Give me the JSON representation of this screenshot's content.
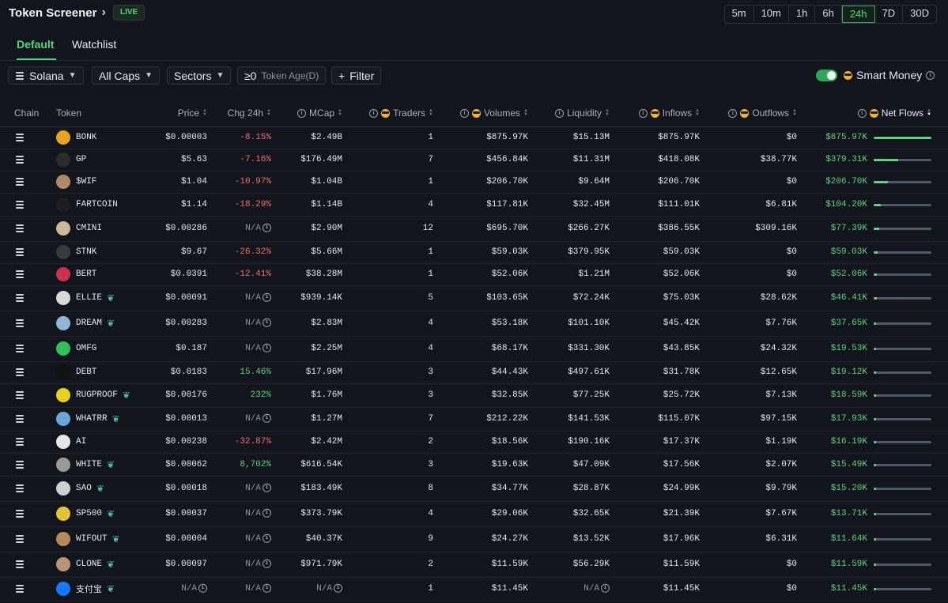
{
  "header": {
    "title": "Token Screener",
    "live_badge": "LIVE",
    "timeframes": [
      "5m",
      "10m",
      "1h",
      "6h",
      "24h",
      "7D",
      "30D"
    ],
    "active_timeframe": "24h"
  },
  "tabs": [
    {
      "label": "Default",
      "active": true
    },
    {
      "label": "Watchlist",
      "active": false
    }
  ],
  "filters": {
    "chain_select": "Solana",
    "caps_select": "All Caps",
    "sectors_select": "Sectors",
    "token_age_value": "≥0",
    "token_age_label": "Token Age(D)",
    "filter_button": "Filter",
    "smart_money_label": "Smart Money",
    "smart_money_enabled": true
  },
  "table": {
    "columns": {
      "chain": "Chain",
      "token": "Token",
      "price": "Price",
      "chg": "Chg 24h",
      "mcap": "MCap",
      "traders": "Traders",
      "volumes": "Volumes",
      "liquidity": "Liquidity",
      "inflows": "Inflows",
      "outflows": "Outflows",
      "netflows": "Net Flows"
    },
    "sort_column": "netflows",
    "sort_direction": "desc",
    "rows": [
      {
        "token": "BONK",
        "new": false,
        "price": "$0.00003",
        "chg": "-8.15%",
        "chg_dir": "neg",
        "mcap": "$2.49B",
        "traders": "1",
        "volumes": "$875.97K",
        "liquidity": "$15.13M",
        "inflows": "$875.97K",
        "outflows": "$0",
        "netflows": "$875.97K",
        "bar": 1.0,
        "icon_color": "#e8a321"
      },
      {
        "token": "GP",
        "new": false,
        "price": "$5.63",
        "chg": "-7.16%",
        "chg_dir": "neg",
        "mcap": "$176.49M",
        "traders": "7",
        "volumes": "$456.84K",
        "liquidity": "$11.31M",
        "inflows": "$418.08K",
        "outflows": "$38.77K",
        "netflows": "$379.31K",
        "bar": 0.43,
        "icon_color": "#2b2b2b"
      },
      {
        "token": "$WIF",
        "new": false,
        "price": "$1.04",
        "chg": "-10.97%",
        "chg_dir": "neg",
        "mcap": "$1.04B",
        "traders": "1",
        "volumes": "$206.70K",
        "liquidity": "$9.64M",
        "inflows": "$206.70K",
        "outflows": "$0",
        "netflows": "$206.70K",
        "bar": 0.24,
        "icon_color": "#b08a6a"
      },
      {
        "token": "FARTCOIN",
        "new": false,
        "price": "$1.14",
        "chg": "-18.29%",
        "chg_dir": "neg",
        "mcap": "$1.14B",
        "traders": "4",
        "volumes": "$117.81K",
        "liquidity": "$32.45M",
        "inflows": "$111.01K",
        "outflows": "$6.81K",
        "netflows": "$104.20K",
        "bar": 0.12,
        "icon_color": "#1e1e1e"
      },
      {
        "token": "CMINI",
        "new": false,
        "price": "$0.00286",
        "chg": "N/A",
        "chg_dir": "na",
        "mcap": "$2.90M",
        "traders": "12",
        "volumes": "$695.70K",
        "liquidity": "$266.27K",
        "inflows": "$386.55K",
        "outflows": "$309.16K",
        "netflows": "$77.39K",
        "bar": 0.09,
        "icon_color": "#c9b89a"
      },
      {
        "token": "STNK",
        "new": false,
        "price": "$9.67",
        "chg": "-26.32%",
        "chg_dir": "neg",
        "mcap": "$5.66M",
        "traders": "1",
        "volumes": "$59.03K",
        "liquidity": "$379.95K",
        "inflows": "$59.03K",
        "outflows": "$0",
        "netflows": "$59.03K",
        "bar": 0.07,
        "icon_color": "#3a3a3a"
      },
      {
        "token": "BERT",
        "new": false,
        "price": "$0.0391",
        "chg": "-12.41%",
        "chg_dir": "neg",
        "mcap": "$38.28M",
        "traders": "1",
        "volumes": "$52.06K",
        "liquidity": "$1.21M",
        "inflows": "$52.06K",
        "outflows": "$0",
        "netflows": "$52.06K",
        "bar": 0.06,
        "icon_color": "#c8324a"
      },
      {
        "token": "ELLIE",
        "new": true,
        "price": "$0.00091",
        "chg": "N/A",
        "chg_dir": "na",
        "mcap": "$939.14K",
        "traders": "5",
        "volumes": "$103.65K",
        "liquidity": "$72.24K",
        "inflows": "$75.03K",
        "outflows": "$28.62K",
        "netflows": "$46.41K",
        "bar": 0.05,
        "icon_color": "#d9d9d9"
      },
      {
        "token": "DREAM",
        "new": true,
        "price": "$0.00283",
        "chg": "N/A",
        "chg_dir": "na",
        "mcap": "$2.83M",
        "traders": "4",
        "volumes": "$53.18K",
        "liquidity": "$101.10K",
        "inflows": "$45.42K",
        "outflows": "$7.76K",
        "netflows": "$37.65K",
        "bar": 0.04,
        "icon_color": "#8fb6d8"
      },
      {
        "token": "OMFG",
        "new": false,
        "price": "$0.187",
        "chg": "N/A",
        "chg_dir": "na",
        "mcap": "$2.25M",
        "traders": "4",
        "volumes": "$68.17K",
        "liquidity": "$331.30K",
        "inflows": "$43.85K",
        "outflows": "$24.32K",
        "netflows": "$19.53K",
        "bar": 0.03,
        "icon_color": "#2fbf5c"
      },
      {
        "token": "DEBT",
        "new": false,
        "price": "$0.0183",
        "chg": "15.46%",
        "chg_dir": "pos",
        "mcap": "$17.96M",
        "traders": "3",
        "volumes": "$44.43K",
        "liquidity": "$497.61K",
        "inflows": "$31.78K",
        "outflows": "$12.65K",
        "netflows": "$19.12K",
        "bar": 0.03,
        "icon_color": "#111111"
      },
      {
        "token": "RUGPROOF",
        "new": true,
        "price": "$0.00176",
        "chg": "232%",
        "chg_dir": "pos",
        "mcap": "$1.76M",
        "traders": "3",
        "volumes": "$32.85K",
        "liquidity": "$77.25K",
        "inflows": "$25.72K",
        "outflows": "$7.13K",
        "netflows": "$18.59K",
        "bar": 0.02,
        "icon_color": "#e8d21a"
      },
      {
        "token": "WHATRR",
        "new": true,
        "price": "$0.00013",
        "chg": "N/A",
        "chg_dir": "na",
        "mcap": "$1.27M",
        "traders": "7",
        "volumes": "$212.22K",
        "liquidity": "$141.53K",
        "inflows": "$115.07K",
        "outflows": "$97.15K",
        "netflows": "$17.93K",
        "bar": 0.02,
        "icon_color": "#6aa6d6"
      },
      {
        "token": "AI",
        "new": false,
        "price": "$0.00238",
        "chg": "-32.87%",
        "chg_dir": "neg",
        "mcap": "$2.42M",
        "traders": "2",
        "volumes": "$18.56K",
        "liquidity": "$190.16K",
        "inflows": "$17.37K",
        "outflows": "$1.19K",
        "netflows": "$16.19K",
        "bar": 0.02,
        "icon_color": "#e6e6e6"
      },
      {
        "token": "WHITE",
        "new": true,
        "price": "$0.00062",
        "chg": "8,702%",
        "chg_dir": "pos",
        "mcap": "$616.54K",
        "traders": "3",
        "volumes": "$19.63K",
        "liquidity": "$47.09K",
        "inflows": "$17.56K",
        "outflows": "$2.07K",
        "netflows": "$15.49K",
        "bar": 0.02,
        "icon_color": "#9a9a9a"
      },
      {
        "token": "SAO",
        "new": true,
        "price": "$0.00018",
        "chg": "N/A",
        "chg_dir": "na",
        "mcap": "$183.49K",
        "traders": "8",
        "volumes": "$34.77K",
        "liquidity": "$28.87K",
        "inflows": "$24.99K",
        "outflows": "$9.79K",
        "netflows": "$15.20K",
        "bar": 0.02,
        "icon_color": "#cfcfcf"
      },
      {
        "token": "SP500",
        "new": true,
        "price": "$0.00037",
        "chg": "N/A",
        "chg_dir": "na",
        "mcap": "$373.79K",
        "traders": "4",
        "volumes": "$29.06K",
        "liquidity": "$32.65K",
        "inflows": "$21.39K",
        "outflows": "$7.67K",
        "netflows": "$13.71K",
        "bar": 0.02,
        "icon_color": "#e2c43a"
      },
      {
        "token": "WIFOUT",
        "new": true,
        "price": "$0.00004",
        "chg": "N/A",
        "chg_dir": "na",
        "mcap": "$40.37K",
        "traders": "9",
        "volumes": "$24.27K",
        "liquidity": "$13.52K",
        "inflows": "$17.96K",
        "outflows": "$6.31K",
        "netflows": "$11.64K",
        "bar": 0.01,
        "icon_color": "#b58a5e"
      },
      {
        "token": "CLONE",
        "new": true,
        "price": "$0.00097",
        "chg": "N/A",
        "chg_dir": "na",
        "mcap": "$971.79K",
        "traders": "2",
        "volumes": "$11.59K",
        "liquidity": "$56.29K",
        "inflows": "$11.59K",
        "outflows": "$0",
        "netflows": "$11.59K",
        "bar": 0.01,
        "icon_color": "#b89478"
      },
      {
        "token": "支付宝",
        "new": true,
        "price": "N/A",
        "price_na": true,
        "chg": "N/A",
        "chg_dir": "na",
        "mcap": "N/A",
        "mcap_na": true,
        "traders": "1",
        "volumes": "$11.45K",
        "liquidity": "N/A",
        "liquidity_na": true,
        "inflows": "$11.45K",
        "outflows": "$0",
        "netflows": "$11.45K",
        "bar": 0.01,
        "icon_color": "#1677ff"
      }
    ]
  }
}
